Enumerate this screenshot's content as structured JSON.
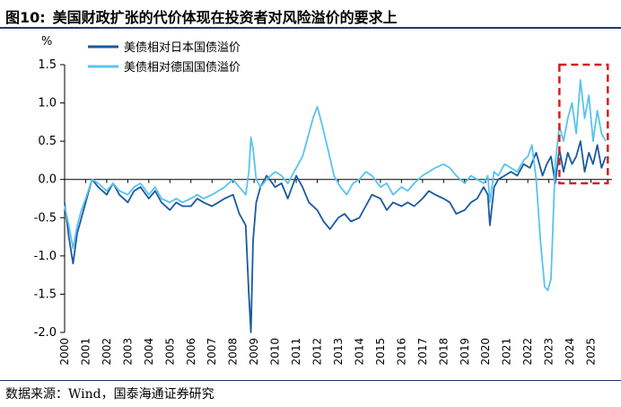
{
  "header": {
    "figure_no": "图10:",
    "title": "美国财政扩张的代价体现在投资者对风险溢价的要求上"
  },
  "footer": {
    "source": "数据来源：Wind，国泰海通证券研究"
  },
  "colors": {
    "us_vs_japan": "#1a5aa0",
    "us_vs_germany": "#5ac3ee",
    "highlight_box": "#d42020",
    "rule": "#1f3a6a"
  },
  "chart_data": {
    "type": "line",
    "title": "",
    "xlabel": "",
    "ylabel": "%",
    "ylim": [
      -2.0,
      1.5
    ],
    "yticks": [
      "1.5",
      "1.0",
      "0.5",
      "0.0",
      "-0.5",
      "-1.0",
      "-1.5",
      "-2.0"
    ],
    "xlim": [
      2000,
      2026
    ],
    "xticks": [
      "2000",
      "2001",
      "2002",
      "2003",
      "2004",
      "2005",
      "2006",
      "2007",
      "2008",
      "2009",
      "2010",
      "2011",
      "2012",
      "2013",
      "2014",
      "2015",
      "2016",
      "2017",
      "2018",
      "2019",
      "2020",
      "2021",
      "2022",
      "2023",
      "2024",
      "2025"
    ],
    "legend_position": "top-left",
    "highlight": {
      "x_range": [
        2023.5,
        2025.8
      ],
      "y_range": [
        -0.05,
        1.5
      ]
    },
    "series": [
      {
        "name": "美债相对日本国债溢价",
        "x": [
          2000.0,
          2000.2,
          2000.4,
          2000.6,
          2000.8,
          2001.0,
          2001.3,
          2001.6,
          2002.0,
          2002.3,
          2002.6,
          2003.0,
          2003.3,
          2003.6,
          2004.0,
          2004.3,
          2004.6,
          2005.0,
          2005.3,
          2005.6,
          2006.0,
          2006.3,
          2006.6,
          2007.0,
          2007.3,
          2007.6,
          2008.0,
          2008.3,
          2008.6,
          2008.75,
          2008.85,
          2008.95,
          2009.1,
          2009.3,
          2009.6,
          2010.0,
          2010.3,
          2010.6,
          2011.0,
          2011.3,
          2011.6,
          2012.0,
          2012.3,
          2012.6,
          2013.0,
          2013.3,
          2013.6,
          2014.0,
          2014.3,
          2014.6,
          2015.0,
          2015.3,
          2015.6,
          2016.0,
          2016.3,
          2016.6,
          2017.0,
          2017.3,
          2017.6,
          2018.0,
          2018.3,
          2018.6,
          2019.0,
          2019.3,
          2019.6,
          2019.9,
          2020.1,
          2020.2,
          2020.4,
          2020.6,
          2020.9,
          2021.2,
          2021.5,
          2021.8,
          2022.1,
          2022.4,
          2022.7,
          2022.9,
          2023.1,
          2023.3,
          2023.5,
          2023.7,
          2023.9,
          2024.1,
          2024.3,
          2024.5,
          2024.7,
          2024.9,
          2025.1,
          2025.3,
          2025.5,
          2025.7
        ],
        "y": [
          -0.3,
          -0.75,
          -1.1,
          -0.7,
          -0.5,
          -0.3,
          0.0,
          -0.1,
          -0.2,
          -0.05,
          -0.2,
          -0.3,
          -0.15,
          -0.1,
          -0.25,
          -0.15,
          -0.3,
          -0.4,
          -0.3,
          -0.35,
          -0.35,
          -0.25,
          -0.3,
          -0.35,
          -0.3,
          -0.25,
          -0.2,
          -0.45,
          -0.6,
          -1.5,
          -2.0,
          -0.8,
          -0.3,
          -0.1,
          0.05,
          -0.1,
          -0.05,
          -0.25,
          0.05,
          -0.1,
          -0.3,
          -0.4,
          -0.55,
          -0.65,
          -0.5,
          -0.45,
          -0.55,
          -0.5,
          -0.35,
          -0.2,
          -0.25,
          -0.4,
          -0.3,
          -0.35,
          -0.3,
          -0.35,
          -0.25,
          -0.15,
          -0.2,
          -0.25,
          -0.3,
          -0.45,
          -0.4,
          -0.3,
          -0.25,
          -0.1,
          -0.2,
          -0.6,
          -0.1,
          0.0,
          0.05,
          0.1,
          0.05,
          0.2,
          0.15,
          0.35,
          0.05,
          0.2,
          0.3,
          -0.05,
          0.4,
          0.1,
          0.35,
          0.2,
          0.3,
          0.5,
          0.1,
          0.35,
          0.2,
          0.45,
          0.15,
          0.3
        ]
      },
      {
        "name": "美债相对德国国债溢价",
        "x": [
          2000.0,
          2000.2,
          2000.4,
          2000.6,
          2000.8,
          2001.0,
          2001.3,
          2001.6,
          2002.0,
          2002.3,
          2002.6,
          2003.0,
          2003.3,
          2003.6,
          2004.0,
          2004.3,
          2004.6,
          2005.0,
          2005.3,
          2005.6,
          2006.0,
          2006.3,
          2006.6,
          2007.0,
          2007.3,
          2007.6,
          2008.0,
          2008.3,
          2008.6,
          2008.75,
          2008.85,
          2008.95,
          2009.1,
          2009.3,
          2009.6,
          2010.0,
          2010.3,
          2010.6,
          2011.0,
          2011.3,
          2011.6,
          2011.8,
          2012.0,
          2012.2,
          2012.5,
          2012.8,
          2013.1,
          2013.4,
          2013.7,
          2014.0,
          2014.3,
          2014.6,
          2015.0,
          2015.3,
          2015.6,
          2016.0,
          2016.3,
          2016.6,
          2017.0,
          2017.3,
          2017.6,
          2018.0,
          2018.3,
          2018.6,
          2019.0,
          2019.3,
          2019.6,
          2019.9,
          2020.1,
          2020.2,
          2020.4,
          2020.6,
          2020.9,
          2021.2,
          2021.5,
          2021.8,
          2022.0,
          2022.2,
          2022.4,
          2022.6,
          2022.8,
          2022.95,
          2023.1,
          2023.3,
          2023.5,
          2023.7,
          2023.9,
          2024.1,
          2024.3,
          2024.5,
          2024.7,
          2024.9,
          2025.1,
          2025.3,
          2025.5,
          2025.7
        ],
        "y": [
          -0.35,
          -0.6,
          -0.9,
          -0.6,
          -0.4,
          -0.25,
          0.0,
          -0.05,
          -0.15,
          -0.05,
          -0.15,
          -0.2,
          -0.1,
          -0.05,
          -0.2,
          -0.1,
          -0.25,
          -0.3,
          -0.25,
          -0.3,
          -0.25,
          -0.2,
          -0.25,
          -0.2,
          -0.15,
          -0.1,
          0.0,
          -0.1,
          -0.2,
          0.1,
          0.55,
          0.4,
          0.0,
          -0.1,
          0.0,
          0.1,
          0.05,
          -0.05,
          0.15,
          0.3,
          0.6,
          0.8,
          0.95,
          0.75,
          0.4,
          0.05,
          -0.1,
          -0.2,
          -0.05,
          0.0,
          0.1,
          0.05,
          -0.1,
          -0.05,
          -0.2,
          -0.1,
          -0.15,
          -0.05,
          0.05,
          0.1,
          0.15,
          0.2,
          0.15,
          0.05,
          -0.05,
          0.05,
          0.0,
          -0.05,
          0.05,
          -0.3,
          0.1,
          0.05,
          0.2,
          0.15,
          0.1,
          0.25,
          0.3,
          0.45,
          0.0,
          -0.8,
          -1.4,
          -1.45,
          -1.3,
          0.2,
          0.7,
          0.5,
          0.8,
          1.0,
          0.6,
          1.3,
          0.8,
          1.1,
          0.5,
          0.9,
          0.6,
          0.5
        ]
      }
    ]
  }
}
